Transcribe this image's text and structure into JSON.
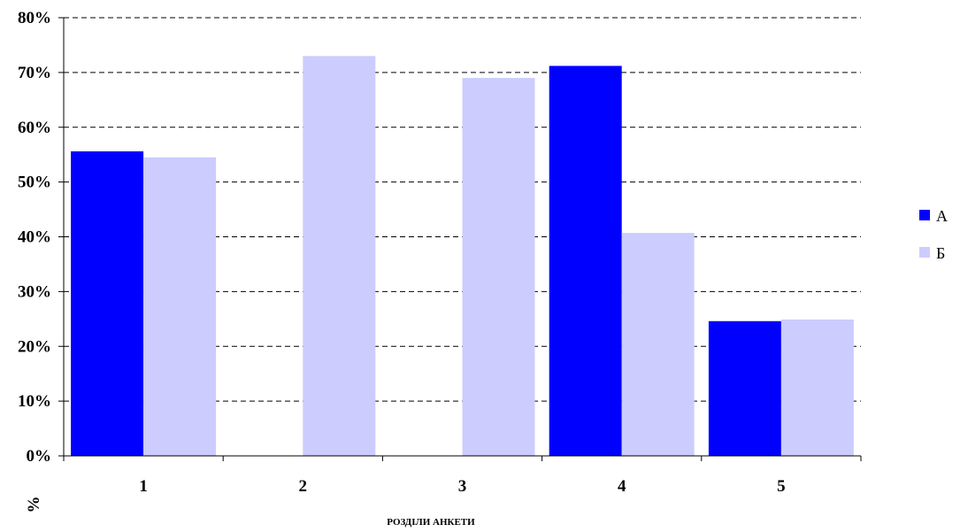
{
  "chart_data": {
    "type": "bar",
    "title": "",
    "xlabel": "РОЗДІЛИ АНКЕТИ",
    "ylabel": "%",
    "ylim": [
      0,
      80
    ],
    "y_ticks": [
      "0%",
      "10%",
      "20%",
      "30%",
      "40%",
      "50%",
      "60%",
      "70%",
      "80%"
    ],
    "categories": [
      "1",
      "2",
      "3",
      "4",
      "5"
    ],
    "series": [
      {
        "name": "А",
        "color": "#0000ff",
        "values": [
          55.6,
          null,
          null,
          71.2,
          24.6
        ]
      },
      {
        "name": "Б",
        "color": "#ccccff",
        "values": [
          54.5,
          73.0,
          69.0,
          40.7,
          24.9
        ]
      }
    ],
    "grid": true,
    "legend_position": "right"
  }
}
